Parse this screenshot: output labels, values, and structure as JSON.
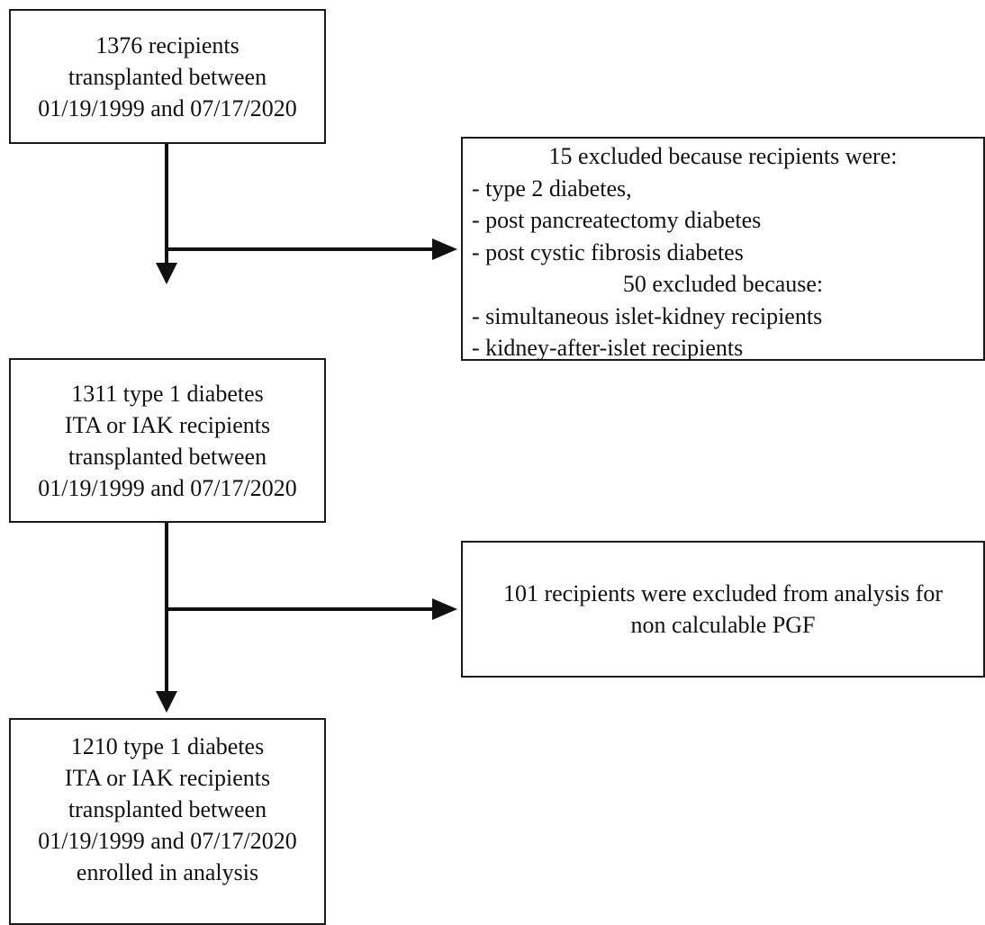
{
  "boxes": {
    "initial": {
      "lines": [
        "1376 recipients",
        "transplanted between",
        "01/19/1999 and 07/17/2020"
      ]
    },
    "exclusion_1": {
      "group_1": {
        "heading": "15 excluded because recipients were:",
        "items": [
          "- type 2 diabetes,",
          "- post pancreatectomy diabetes",
          "- post cystic fibrosis diabetes"
        ]
      },
      "group_2": {
        "heading": "50 excluded because:",
        "items": [
          "- simultaneous islet-kidney recipients",
          "- kidney-after-islet recipients"
        ]
      }
    },
    "intermediate": {
      "lines": [
        "1311 type 1 diabetes",
        "ITA or IAK recipients",
        "transplanted between",
        "01/19/1999 and 07/17/2020"
      ]
    },
    "exclusion_2": {
      "lines": [
        "101 recipients were excluded from analysis for",
        "non calculable PGF"
      ]
    },
    "final": {
      "lines": [
        "1210 type 1 diabetes",
        "ITA or IAK recipients",
        "transplanted between",
        "01/19/1999 and 07/17/2020",
        "enrolled in analysis"
      ]
    }
  }
}
